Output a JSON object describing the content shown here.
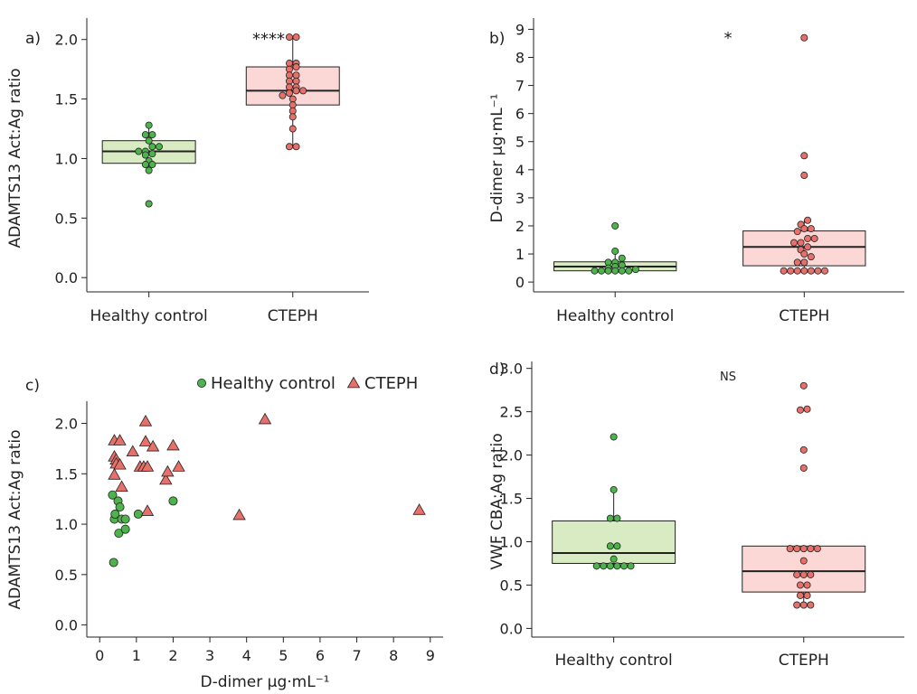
{
  "colors": {
    "healthy_fill": "#4db34d",
    "cteph_fill": "#e8706a",
    "healthy_box": "#d9ebc3",
    "cteph_box": "#fbd8d6",
    "edge": "#222222"
  },
  "chart_data": [
    {
      "panel": "a)",
      "type": "box",
      "categories": [
        "Healthy control",
        "CTEPH"
      ],
      "ylabel": "ADAMTS13 Act:Ag ratio",
      "ylim": [
        -0.12,
        2.18
      ],
      "yticks": [
        "0.0",
        "0.5",
        "1.0",
        "1.5",
        "2.0"
      ],
      "significance": "****",
      "series": [
        {
          "name": "Healthy control",
          "box": {
            "q1": 0.96,
            "median": 1.06,
            "q3": 1.15,
            "whisker_low": 0.9,
            "whisker_high": 1.28
          },
          "points": [
            0.62,
            0.9,
            0.95,
            0.95,
            0.98,
            1.03,
            1.04,
            1.06,
            1.06,
            1.1,
            1.1,
            1.15,
            1.2,
            1.2,
            1.28
          ]
        },
        {
          "name": "CTEPH",
          "box": {
            "q1": 1.45,
            "median": 1.57,
            "q3": 1.77,
            "whisker_low": 1.1,
            "whisker_high": 2.02
          },
          "points": [
            1.1,
            1.1,
            1.25,
            1.35,
            1.4,
            1.45,
            1.5,
            1.53,
            1.55,
            1.57,
            1.57,
            1.6,
            1.6,
            1.65,
            1.65,
            1.7,
            1.7,
            1.75,
            1.77,
            1.8,
            1.8,
            2.02,
            2.02
          ]
        }
      ]
    },
    {
      "panel": "b)",
      "type": "box",
      "categories": [
        "Healthy control",
        "CTEPH"
      ],
      "ylabel": "D-dimer µg·mL⁻¹",
      "ylim": [
        -0.35,
        9.4
      ],
      "yticks": [
        "0",
        "1",
        "2",
        "3",
        "4",
        "5",
        "6",
        "7",
        "8",
        "9"
      ],
      "significance": "*",
      "series": [
        {
          "name": "Healthy control",
          "box": {
            "q1": 0.4,
            "median": 0.55,
            "q3": 0.72,
            "whisker_low": 0.4,
            "whisker_high": 1.1
          },
          "points": [
            0.4,
            0.4,
            0.4,
            0.4,
            0.4,
            0.4,
            0.45,
            0.5,
            0.55,
            0.6,
            0.7,
            0.7,
            0.85,
            1.1,
            2.0
          ]
        },
        {
          "name": "CTEPH",
          "box": {
            "q1": 0.58,
            "median": 1.25,
            "q3": 1.82,
            "whisker_low": 0.4,
            "whisker_high": 2.2
          },
          "points": [
            0.4,
            0.4,
            0.4,
            0.4,
            0.4,
            0.4,
            0.4,
            0.7,
            0.7,
            0.9,
            1.0,
            1.15,
            1.25,
            1.4,
            1.4,
            1.55,
            1.55,
            1.8,
            1.9,
            1.9,
            2.05,
            2.2,
            3.8,
            4.5,
            8.7
          ]
        }
      ]
    },
    {
      "panel": "c)",
      "type": "scatter",
      "xlabel": "D-dimer µg·mL⁻¹",
      "ylabel": "ADAMTS13 Act:Ag ratio",
      "xlim": [
        -0.35,
        9.35
      ],
      "ylim": [
        -0.12,
        2.22
      ],
      "xticks": [
        "0",
        "1",
        "2",
        "3",
        "4",
        "5",
        "6",
        "7",
        "8",
        "9"
      ],
      "yticks": [
        "0.0",
        "0.5",
        "1.0",
        "1.5",
        "2.0"
      ],
      "legend": "top-right",
      "series": [
        {
          "name": "Healthy control",
          "marker": "circle",
          "x": [
            0.38,
            0.35,
            0.4,
            0.42,
            0.5,
            0.52,
            0.55,
            0.6,
            0.7,
            0.7,
            1.05,
            2.0
          ],
          "y": [
            0.62,
            1.29,
            1.05,
            1.1,
            1.23,
            0.91,
            1.17,
            1.05,
            0.95,
            1.05,
            1.1,
            1.23
          ]
        },
        {
          "name": "CTEPH",
          "marker": "triangle",
          "x": [
            0.4,
            0.4,
            0.45,
            0.4,
            0.45,
            0.55,
            0.55,
            0.6,
            0.9,
            1.1,
            1.2,
            1.25,
            1.25,
            1.3,
            1.45,
            1.8,
            1.85,
            2.0,
            2.15,
            1.3,
            3.8,
            4.5,
            8.7
          ],
          "y": [
            1.83,
            1.67,
            1.64,
            1.49,
            1.6,
            1.83,
            1.59,
            1.37,
            1.72,
            1.57,
            1.57,
            1.82,
            2.02,
            1.57,
            1.77,
            1.44,
            1.52,
            1.78,
            1.57,
            1.13,
            1.09,
            2.04,
            1.14
          ]
        }
      ]
    },
    {
      "panel": "d)",
      "type": "box",
      "categories": [
        "Healthy control",
        "CTEPH"
      ],
      "ylabel": "VWF CBA:Ag ratio",
      "ylim": [
        -0.1,
        3.08
      ],
      "yticks": [
        "0.0",
        "0.5",
        "1.0",
        "1.5",
        "2.0",
        "2.5",
        "3.0"
      ],
      "significance": "NS",
      "series": [
        {
          "name": "Healthy control",
          "box": {
            "q1": 0.75,
            "median": 0.87,
            "q3": 1.24,
            "whisker_low": 0.72,
            "whisker_high": 1.6
          },
          "points": [
            0.72,
            0.72,
            0.72,
            0.72,
            0.72,
            0.72,
            0.8,
            0.95,
            0.95,
            1.27,
            1.27,
            1.6,
            2.21
          ]
        },
        {
          "name": "CTEPH",
          "box": {
            "q1": 0.42,
            "median": 0.66,
            "q3": 0.95,
            "whisker_low": 0.27,
            "whisker_high": 0.95
          },
          "points": [
            0.27,
            0.27,
            0.27,
            0.38,
            0.38,
            0.5,
            0.5,
            0.62,
            0.62,
            0.62,
            0.78,
            0.92,
            0.92,
            0.92,
            0.92,
            0.92,
            1.85,
            2.06,
            2.52,
            2.53,
            2.8
          ]
        }
      ]
    }
  ]
}
